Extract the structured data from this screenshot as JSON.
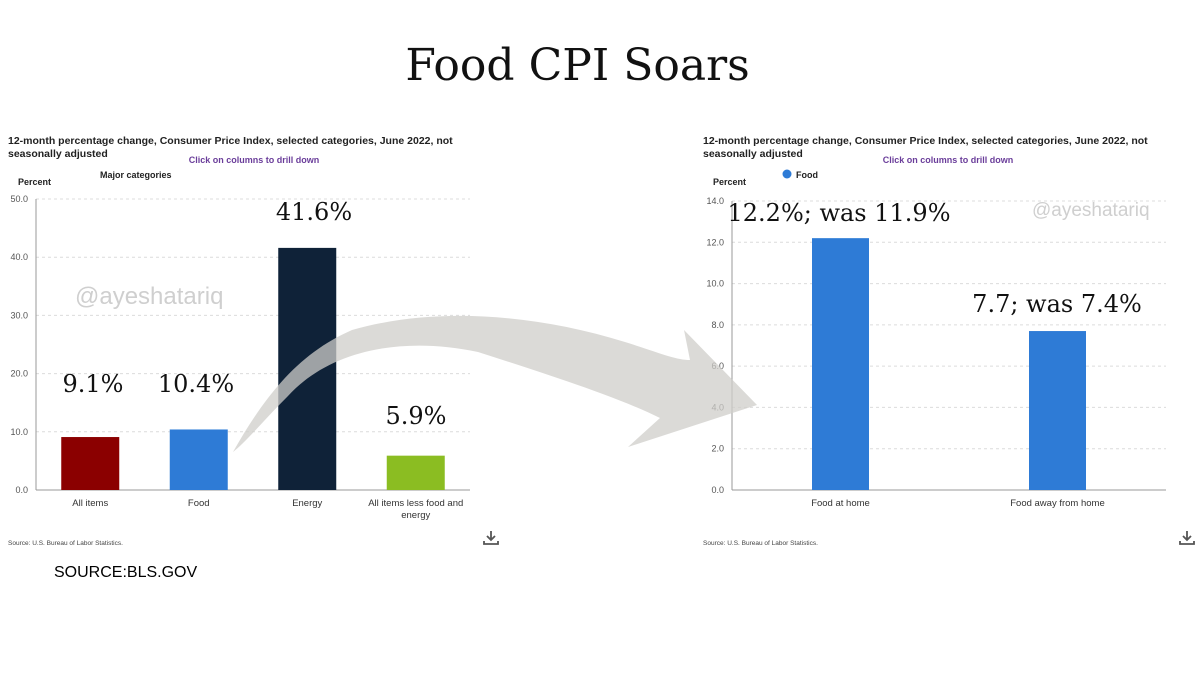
{
  "title": "Food CPI Soars",
  "source_note": "SOURCE:BLS.GOV",
  "watermark": "@ayeshatariq",
  "chart_data": [
    {
      "type": "bar",
      "title": "12-month percentage change, Consumer Price Index, selected categories, June 2022, not seasonally adjusted",
      "title_lines": [
        "12-month percentage change, Consumer Price Index, selected categories, June 2022, not",
        "seasonally adjusted"
      ],
      "drilldown_hint": "Click on columns to drill down",
      "legend": "Major categories",
      "ylabel": "Percent",
      "ylim": [
        0,
        50
      ],
      "yticks": [
        "0.0",
        "10.0",
        "20.0",
        "30.0",
        "40.0",
        "50.0"
      ],
      "categories": [
        "All items",
        "Food",
        "Energy",
        "All items less food and energy"
      ],
      "category_lines": [
        [
          "All items"
        ],
        [
          "Food"
        ],
        [
          "Energy"
        ],
        [
          "All items less food and",
          "energy"
        ]
      ],
      "values": [
        9.1,
        10.4,
        41.6,
        5.9
      ],
      "colors": [
        "#8b0000",
        "#2e7bd6",
        "#0f2238",
        "#8bbd22"
      ],
      "annotations": [
        "9.1%",
        "10.4%",
        "41.6%",
        "5.9%"
      ],
      "source": "Source: U.S. Bureau of Labor Statistics.",
      "grid": true
    },
    {
      "type": "bar",
      "title": "12-month percentage change, Consumer Price Index, selected categories, June 2022, not seasonally adjusted",
      "title_lines": [
        "12-month percentage change, Consumer Price Index, selected categories, June 2022, not",
        "seasonally adjusted"
      ],
      "drilldown_hint": "Click on columns to drill down",
      "legend": "Food",
      "ylabel": "Percent",
      "ylim": [
        0,
        14
      ],
      "yticks": [
        "0.0",
        "2.0",
        "4.0",
        "6.0",
        "8.0",
        "10.0",
        "12.0",
        "14.0"
      ],
      "categories": [
        "Food at home",
        "Food away from home"
      ],
      "category_lines": [
        [
          "Food at home"
        ],
        [
          "Food away from home"
        ]
      ],
      "values": [
        12.2,
        7.7
      ],
      "colors": [
        "#2e7bd6",
        "#2e7bd6"
      ],
      "annotations": [
        "12.2%; was 11.9%",
        "7.7; was 7.4%"
      ],
      "source": "Source: U.S. Bureau of Labor Statistics.",
      "grid": true
    }
  ]
}
